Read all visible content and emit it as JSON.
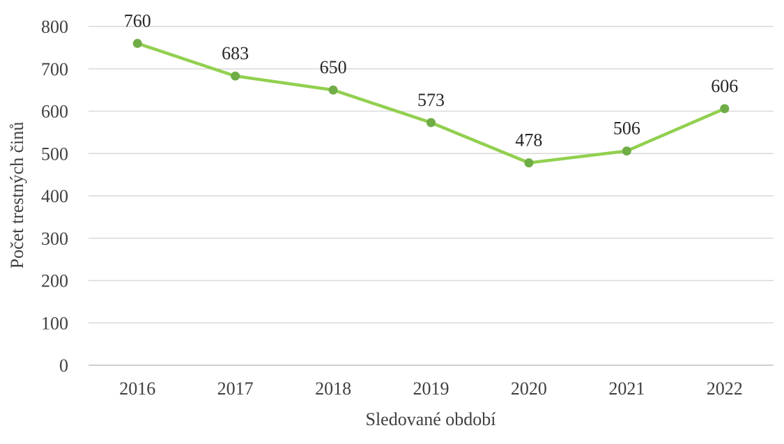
{
  "chart_data": {
    "type": "line",
    "title": "",
    "xlabel": "Sledované období",
    "ylabel": "Počet trestných činů",
    "categories": [
      "2016",
      "2017",
      "2018",
      "2019",
      "2020",
      "2021",
      "2022"
    ],
    "series": [
      {
        "values": [
          760,
          683,
          650,
          573,
          478,
          506,
          606
        ],
        "color": "#92d050",
        "data_labels": [
          "760",
          "683",
          "650",
          "573",
          "478",
          "506",
          "606"
        ]
      }
    ],
    "yticks": [
      "0",
      "100",
      "200",
      "300",
      "400",
      "500",
      "600",
      "700",
      "800"
    ],
    "ylim": [
      0,
      800
    ],
    "grid": true,
    "legend": "none",
    "marker_color": "#70ad47"
  }
}
